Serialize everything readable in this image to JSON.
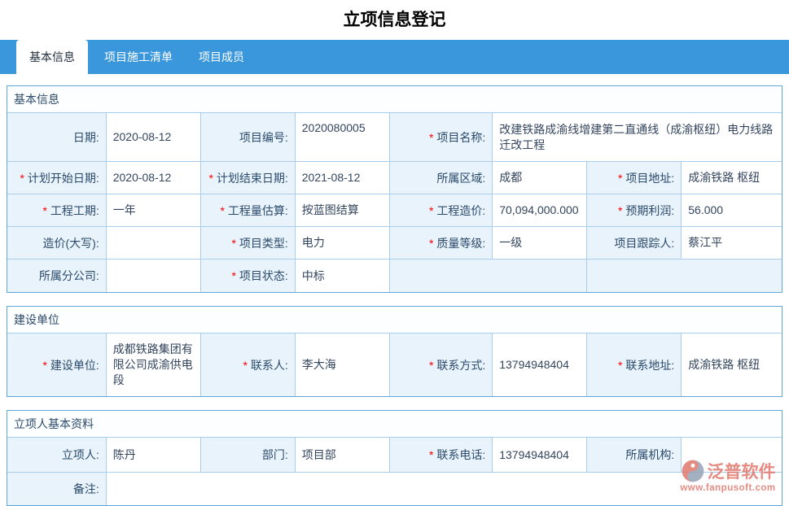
{
  "page_title": "立项信息登记",
  "tabs": [
    {
      "id": "basic-info",
      "label": "基本信息",
      "active": true
    },
    {
      "id": "construction-list",
      "label": "项目施工清单",
      "active": false
    },
    {
      "id": "project-members",
      "label": "项目成员",
      "active": false
    }
  ],
  "required_marker": "*",
  "sections": [
    {
      "id": "basic-info",
      "header": "基本信息",
      "rows": [
        {
          "h": 60,
          "cells": [
            {
              "t": "label",
              "name": "date",
              "text": "日期:"
            },
            {
              "t": "value",
              "name": "date",
              "text": "2020-08-12"
            },
            {
              "t": "label",
              "name": "project-code",
              "text": "项目编号:"
            },
            {
              "t": "value",
              "name": "project-code",
              "text": "2020080005",
              "top": true
            },
            {
              "t": "label",
              "name": "project-name",
              "text": "项目名称:",
              "req": true
            },
            {
              "t": "value",
              "name": "project-name",
              "text": "改建铁路成渝线增建第二直通线（成渝枢纽）电力线路迁改工程",
              "span": 3
            }
          ]
        },
        {
          "h": 40,
          "cells": [
            {
              "t": "label",
              "name": "plan-start-date",
              "text": "计划开始日期:",
              "req": true
            },
            {
              "t": "value",
              "name": "plan-start-date",
              "text": "2020-08-12"
            },
            {
              "t": "label",
              "name": "plan-end-date",
              "text": "计划结束日期:",
              "req": true
            },
            {
              "t": "value",
              "name": "plan-end-date",
              "text": "2021-08-12"
            },
            {
              "t": "label",
              "name": "region",
              "text": "所属区域:"
            },
            {
              "t": "value",
              "name": "region",
              "text": "成都"
            },
            {
              "t": "label",
              "name": "project-address",
              "text": "项目地址:",
              "req": true
            },
            {
              "t": "value",
              "name": "project-address",
              "text": "成渝铁路 枢纽"
            }
          ]
        },
        {
          "h": 40,
          "cells": [
            {
              "t": "label",
              "name": "project-duration",
              "text": "工程工期:",
              "req": true
            },
            {
              "t": "value",
              "name": "project-duration",
              "text": "一年"
            },
            {
              "t": "label",
              "name": "quantity-estimate",
              "text": "工程量估算:",
              "req": true
            },
            {
              "t": "value",
              "name": "quantity-estimate",
              "text": "按蓝图结算"
            },
            {
              "t": "label",
              "name": "project-cost",
              "text": "工程造价:",
              "req": true
            },
            {
              "t": "value",
              "name": "project-cost",
              "text": "70,094,000.000"
            },
            {
              "t": "label",
              "name": "expected-profit",
              "text": "预期利润:",
              "req": true
            },
            {
              "t": "value",
              "name": "expected-profit",
              "text": "56.000"
            }
          ]
        },
        {
          "h": 40,
          "cells": [
            {
              "t": "label",
              "name": "cost-in-words",
              "text": "造价(大写):"
            },
            {
              "t": "value",
              "name": "cost-in-words",
              "text": ""
            },
            {
              "t": "label",
              "name": "project-type",
              "text": "项目类型:",
              "req": true
            },
            {
              "t": "value",
              "name": "project-type",
              "text": "电力"
            },
            {
              "t": "label",
              "name": "quality-grade",
              "text": "质量等级:",
              "req": true
            },
            {
              "t": "value",
              "name": "quality-grade",
              "text": "一级"
            },
            {
              "t": "label",
              "name": "project-tracker",
              "text": "项目跟踪人:"
            },
            {
              "t": "value",
              "name": "project-tracker",
              "text": "蔡江平"
            }
          ]
        },
        {
          "h": 40,
          "cells": [
            {
              "t": "label",
              "name": "branch-company",
              "text": "所属分公司:"
            },
            {
              "t": "value",
              "name": "branch-company",
              "text": ""
            },
            {
              "t": "label",
              "name": "project-status",
              "text": "项目状态:",
              "req": true
            },
            {
              "t": "value",
              "name": "project-status",
              "text": "中标"
            },
            {
              "t": "blank",
              "name": "empty-cell-1",
              "span": 2
            },
            {
              "t": "blank",
              "name": "empty-cell-2",
              "span": 2
            }
          ]
        }
      ]
    },
    {
      "id": "construction-unit",
      "header": "建设单位",
      "rows": [
        {
          "h": 77,
          "cells": [
            {
              "t": "label",
              "name": "construction-unit",
              "text": "建设单位:",
              "req": true
            },
            {
              "t": "value",
              "name": "construction-unit",
              "text": "成都铁路集团有限公司成渝供电段"
            },
            {
              "t": "label",
              "name": "contact-person",
              "text": "联系人:",
              "req": true
            },
            {
              "t": "value",
              "name": "contact-person",
              "text": "李大海"
            },
            {
              "t": "label",
              "name": "contact-method",
              "text": "联系方式:",
              "req": true
            },
            {
              "t": "value",
              "name": "contact-method",
              "text": "13794948404"
            },
            {
              "t": "label",
              "name": "contact-address",
              "text": "联系地址:",
              "req": true
            },
            {
              "t": "value",
              "name": "contact-address",
              "text": "成渝铁路 枢纽"
            }
          ]
        }
      ]
    },
    {
      "id": "applicant-info",
      "header": "立项人基本资料",
      "rows": [
        {
          "h": 43,
          "cells": [
            {
              "t": "label",
              "name": "applicant",
              "text": "立项人:"
            },
            {
              "t": "value",
              "name": "applicant",
              "text": "陈丹"
            },
            {
              "t": "label",
              "name": "department",
              "text": "部门:"
            },
            {
              "t": "value",
              "name": "department",
              "text": "项目部"
            },
            {
              "t": "label",
              "name": "contact-phone",
              "text": "联系电话:",
              "req": true
            },
            {
              "t": "value",
              "name": "contact-phone",
              "text": "13794948404"
            },
            {
              "t": "label",
              "name": "organization",
              "text": "所属机构:"
            },
            {
              "t": "value",
              "name": "organization",
              "text": ""
            }
          ]
        },
        {
          "h": 40,
          "cells": [
            {
              "t": "label",
              "name": "remark",
              "text": "备注:"
            },
            {
              "t": "value",
              "name": "remark",
              "text": "",
              "span": 7
            }
          ]
        }
      ]
    }
  ],
  "watermark": {
    "brand": "泛普软件",
    "url": "www.fanpusoft.com"
  },
  "colors": {
    "tab_bar": "#3b97db",
    "table_border": "#5fa6d6",
    "cell_border": "#a9cde9",
    "label_bg": "#e8f3fb",
    "label_text": "#2b4a6b",
    "required": "#ff0000",
    "watermark": "#e2776d"
  }
}
